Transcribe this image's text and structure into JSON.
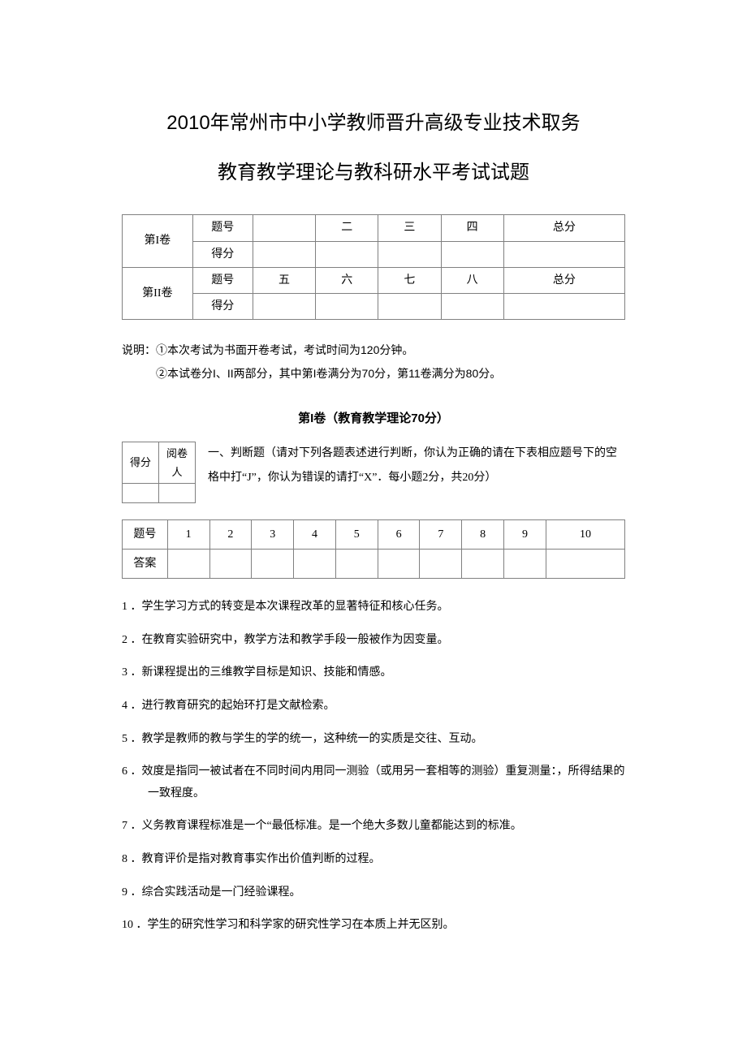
{
  "title": {
    "line1": "2010年常州市中小学教师晋升高级专业技术取务",
    "line2": "教育教学理论与教科研水平考试试题"
  },
  "score_table": {
    "paper1_label": "第I卷",
    "paper2_label": "第II卷",
    "row_label_number": "题号",
    "row_label_score": "得分",
    "paper1_cols": [
      "",
      "二",
      "三",
      "四",
      "总分"
    ],
    "paper2_cols": [
      "五",
      "六",
      "七",
      "八",
      "总分"
    ]
  },
  "instructions": {
    "line1": "说明：①本次考试为书面开卷考试，考试时间为120分钟。",
    "line2": "②本试卷分I、II两部分，其中第I卷满分为70分，第11卷满分为80分。"
  },
  "section1_heading": "第I卷（教育教学理论70分）",
  "grader_box": {
    "score_label": "得分",
    "reviewer_label": "阅卷人"
  },
  "q1_intro": "一、判断题（请对下列各题表述进行判断，你认为正确的请在下表相应题号下的空格中打“J”，你认为错误的请打“X”．每小题2分，共20分）",
  "answer_table": {
    "number_label": "题号",
    "answer_label": "答案",
    "numbers": [
      "1",
      "2",
      "3",
      "4",
      "5",
      "6",
      "7",
      "8",
      "9",
      "10"
    ]
  },
  "questions": [
    "1 ．学生学习方式的转变是本次课程改革的显著特征和核心任务。",
    "2 ．在教育实验研究中，教学方法和教学手段一般被作为因变量。",
    "3 ．新课程提出的三维教学目标是知识、技能和情感。",
    "4 ．进行教育研究的起始环打是文献检索。",
    "5 ．教学是教师的教与学生的学的统一，这种统一的实质是交往、互动。",
    "6 ．效度是指同一被试者在不同时间内用同一测验（或用另一套相等的测验）重复测量：，所得结果的一致程度。",
    "7 ．义务教育课程标准是一个“最低标准。是一个绝大多数儿童都能达到的标准。",
    "8 ．教育评价是指对教育事实作出价值判断的过程。",
    "9 ．综合实践活动是一门经验课程。",
    "10 ．学生的研究性学习和科学家的研究性学习在本质上并无区别。"
  ],
  "colors": {
    "text": "#000000",
    "border": "#808080",
    "background": "#ffffff"
  }
}
